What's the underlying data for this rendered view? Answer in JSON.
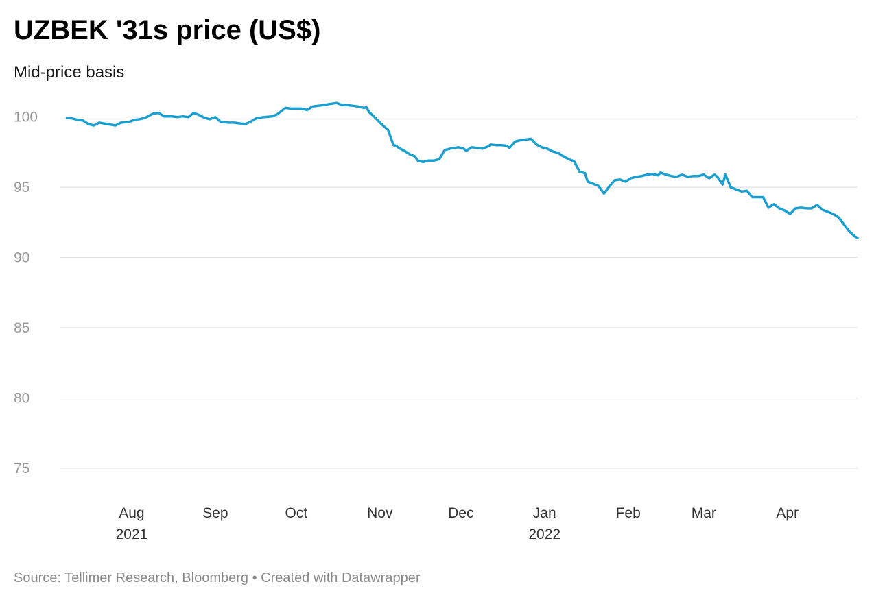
{
  "title": "UZBEK '31s price (US$)",
  "subtitle": "Mid-price basis",
  "footer": {
    "source": "Source: Tellimer Research, Bloomberg",
    "separator": "•",
    "credit": "Created with Datawrapper"
  },
  "colors": {
    "line": "#1a9fd0",
    "grid": "#dcdcdc"
  },
  "chart_data": {
    "type": "line",
    "title": "UZBEK '31s price (US$)",
    "subtitle": "Mid-price basis",
    "xlabel": "",
    "ylabel": "",
    "ylim": [
      72.8,
      101.5
    ],
    "xlim": [
      "2021-07-01",
      "2022-04-27"
    ],
    "yticks": [
      100,
      95,
      90,
      85,
      80,
      75
    ],
    "xticks": [
      {
        "date": "2021-08-01",
        "label": "Aug",
        "year": "2021"
      },
      {
        "date": "2021-09-01",
        "label": "Sep",
        "year": ""
      },
      {
        "date": "2021-10-01",
        "label": "Oct",
        "year": ""
      },
      {
        "date": "2021-11-01",
        "label": "Nov",
        "year": ""
      },
      {
        "date": "2021-12-01",
        "label": "Dec",
        "year": ""
      },
      {
        "date": "2022-01-01",
        "label": "Jan",
        "year": "2022"
      },
      {
        "date": "2022-02-01",
        "label": "Feb",
        "year": ""
      },
      {
        "date": "2022-03-01",
        "label": "Mar",
        "year": ""
      },
      {
        "date": "2022-04-01",
        "label": "Apr",
        "year": ""
      }
    ],
    "grid": true,
    "series": [
      {
        "points": [
          [
            "2021-07-08",
            99.95
          ],
          [
            "2021-07-10",
            99.9
          ],
          [
            "2021-07-12",
            99.8
          ],
          [
            "2021-07-14",
            99.75
          ],
          [
            "2021-07-16",
            99.5
          ],
          [
            "2021-07-18",
            99.4
          ],
          [
            "2021-07-20",
            99.6
          ],
          [
            "2021-07-23",
            99.5
          ],
          [
            "2021-07-26",
            99.4
          ],
          [
            "2021-07-28",
            99.6
          ],
          [
            "2021-07-31",
            99.65
          ],
          [
            "2021-08-02",
            99.8
          ],
          [
            "2021-08-04",
            99.85
          ],
          [
            "2021-08-06",
            99.95
          ],
          [
            "2021-08-09",
            100.25
          ],
          [
            "2021-08-11",
            100.3
          ],
          [
            "2021-08-13",
            100.05
          ],
          [
            "2021-08-16",
            100.05
          ],
          [
            "2021-08-18",
            100.0
          ],
          [
            "2021-08-20",
            100.05
          ],
          [
            "2021-08-22",
            100.0
          ],
          [
            "2021-08-24",
            100.3
          ],
          [
            "2021-08-26",
            100.15
          ],
          [
            "2021-08-28",
            99.95
          ],
          [
            "2021-08-30",
            99.85
          ],
          [
            "2021-09-01",
            100.0
          ],
          [
            "2021-09-03",
            99.65
          ],
          [
            "2021-09-06",
            99.6
          ],
          [
            "2021-09-08",
            99.6
          ],
          [
            "2021-09-10",
            99.55
          ],
          [
            "2021-09-12",
            99.5
          ],
          [
            "2021-09-14",
            99.65
          ],
          [
            "2021-09-16",
            99.9
          ],
          [
            "2021-09-19",
            100.0
          ],
          [
            "2021-09-22",
            100.05
          ],
          [
            "2021-09-24",
            100.2
          ],
          [
            "2021-09-27",
            100.65
          ],
          [
            "2021-09-29",
            100.6
          ],
          [
            "2021-10-01",
            100.6
          ],
          [
            "2021-10-03",
            100.6
          ],
          [
            "2021-10-05",
            100.5
          ],
          [
            "2021-10-07",
            100.75
          ],
          [
            "2021-10-09",
            100.8
          ],
          [
            "2021-10-11",
            100.85
          ],
          [
            "2021-10-14",
            100.95
          ],
          [
            "2021-10-16",
            101.0
          ],
          [
            "2021-10-18",
            100.85
          ],
          [
            "2021-10-20",
            100.85
          ],
          [
            "2021-10-22",
            100.8
          ],
          [
            "2021-10-24",
            100.75
          ],
          [
            "2021-10-26",
            100.65
          ],
          [
            "2021-10-27",
            100.7
          ],
          [
            "2021-10-28",
            100.35
          ],
          [
            "2021-10-30",
            100.0
          ],
          [
            "2021-11-01",
            99.6
          ],
          [
            "2021-11-03",
            99.25
          ],
          [
            "2021-11-04",
            99.1
          ],
          [
            "2021-11-06",
            98.0
          ],
          [
            "2021-11-07",
            97.95
          ],
          [
            "2021-11-08",
            97.8
          ],
          [
            "2021-11-10",
            97.6
          ],
          [
            "2021-11-12",
            97.35
          ],
          [
            "2021-11-14",
            97.2
          ],
          [
            "2021-11-15",
            96.9
          ],
          [
            "2021-11-17",
            96.8
          ],
          [
            "2021-11-19",
            96.9
          ],
          [
            "2021-11-21",
            96.9
          ],
          [
            "2021-11-23",
            97.0
          ],
          [
            "2021-11-25",
            97.65
          ],
          [
            "2021-11-27",
            97.75
          ],
          [
            "2021-11-30",
            97.85
          ],
          [
            "2021-12-02",
            97.75
          ],
          [
            "2021-12-03",
            97.6
          ],
          [
            "2021-12-05",
            97.85
          ],
          [
            "2021-12-07",
            97.8
          ],
          [
            "2021-12-09",
            97.75
          ],
          [
            "2021-12-11",
            97.9
          ],
          [
            "2021-12-12",
            98.05
          ],
          [
            "2021-12-14",
            98.0
          ],
          [
            "2021-12-16",
            98.0
          ],
          [
            "2021-12-18",
            97.95
          ],
          [
            "2021-12-19",
            97.8
          ],
          [
            "2021-12-21",
            98.25
          ],
          [
            "2021-12-23",
            98.35
          ],
          [
            "2021-12-25",
            98.4
          ],
          [
            "2021-12-27",
            98.45
          ],
          [
            "2021-12-29",
            98.05
          ],
          [
            "2021-12-31",
            97.85
          ],
          [
            "2022-01-02",
            97.75
          ],
          [
            "2022-01-04",
            97.55
          ],
          [
            "2022-01-06",
            97.45
          ],
          [
            "2022-01-08",
            97.2
          ],
          [
            "2022-01-10",
            97.0
          ],
          [
            "2022-01-12",
            96.85
          ],
          [
            "2022-01-14",
            96.1
          ],
          [
            "2022-01-16",
            96.0
          ],
          [
            "2022-01-17",
            95.4
          ],
          [
            "2022-01-19",
            95.25
          ],
          [
            "2022-01-21",
            95.1
          ],
          [
            "2022-01-23",
            94.55
          ],
          [
            "2022-01-25",
            95.05
          ],
          [
            "2022-01-27",
            95.5
          ],
          [
            "2022-01-29",
            95.55
          ],
          [
            "2022-01-31",
            95.4
          ],
          [
            "2022-02-02",
            95.65
          ],
          [
            "2022-02-04",
            95.75
          ],
          [
            "2022-02-06",
            95.8
          ],
          [
            "2022-02-08",
            95.9
          ],
          [
            "2022-02-10",
            95.95
          ],
          [
            "2022-02-12",
            95.85
          ],
          [
            "2022-02-13",
            96.05
          ],
          [
            "2022-02-15",
            95.9
          ],
          [
            "2022-02-17",
            95.8
          ],
          [
            "2022-02-19",
            95.75
          ],
          [
            "2022-02-21",
            95.9
          ],
          [
            "2022-02-23",
            95.75
          ],
          [
            "2022-02-25",
            95.8
          ],
          [
            "2022-02-27",
            95.8
          ],
          [
            "2022-03-01",
            95.9
          ],
          [
            "2022-03-03",
            95.65
          ],
          [
            "2022-03-05",
            95.9
          ],
          [
            "2022-03-06",
            95.75
          ],
          [
            "2022-03-08",
            95.2
          ],
          [
            "2022-03-09",
            95.9
          ],
          [
            "2022-03-11",
            95.0
          ],
          [
            "2022-03-13",
            94.85
          ],
          [
            "2022-03-15",
            94.7
          ],
          [
            "2022-03-17",
            94.75
          ],
          [
            "2022-03-19",
            94.3
          ],
          [
            "2022-03-21",
            94.3
          ],
          [
            "2022-03-23",
            94.3
          ],
          [
            "2022-03-25",
            93.55
          ],
          [
            "2022-03-27",
            93.8
          ],
          [
            "2022-03-29",
            93.5
          ],
          [
            "2022-03-31",
            93.35
          ],
          [
            "2022-04-02",
            93.1
          ],
          [
            "2022-04-04",
            93.5
          ],
          [
            "2022-04-06",
            93.55
          ],
          [
            "2022-04-08",
            93.5
          ],
          [
            "2022-04-10",
            93.5
          ],
          [
            "2022-04-12",
            93.75
          ],
          [
            "2022-04-14",
            93.4
          ],
          [
            "2022-04-16",
            93.25
          ],
          [
            "2022-04-18",
            93.1
          ],
          [
            "2022-04-20",
            92.85
          ],
          [
            "2022-04-22",
            92.35
          ],
          [
            "2022-04-24",
            91.85
          ],
          [
            "2022-04-26",
            91.5
          ],
          [
            "2022-04-27",
            91.4
          ]
        ]
      }
    ]
  }
}
